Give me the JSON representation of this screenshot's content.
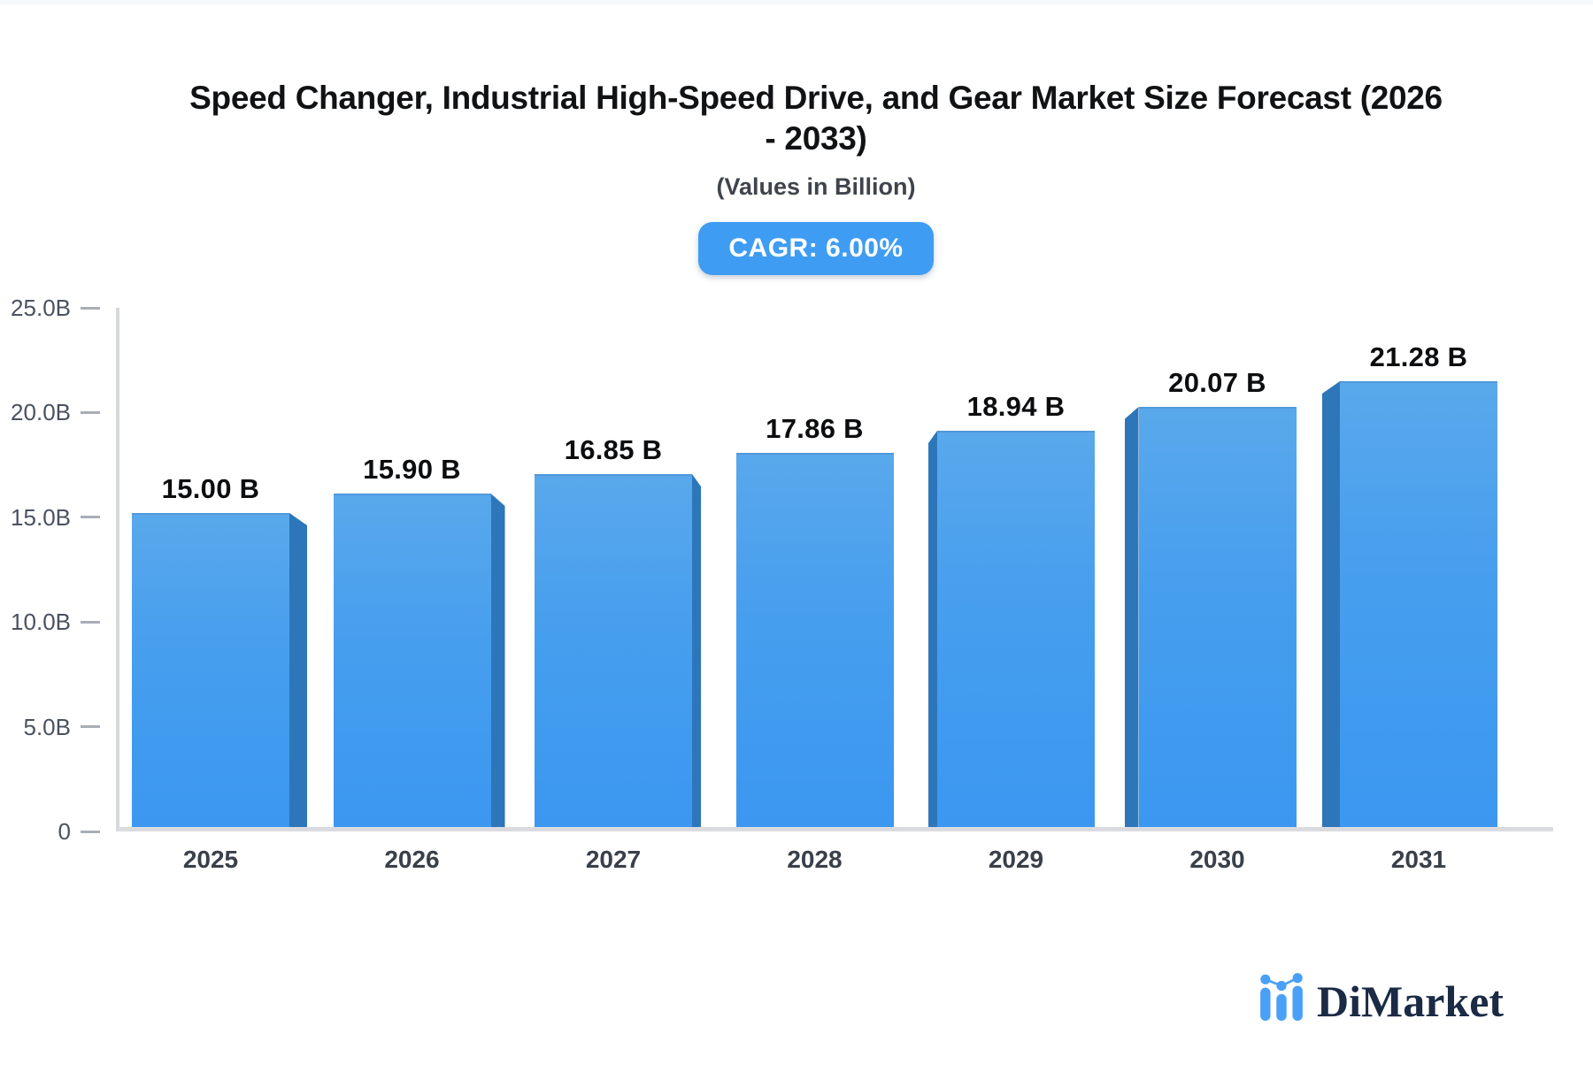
{
  "header": {
    "title_lines": [
      "Speed Changer, Industrial High-Speed Drive, and Gear Market Size Forecast (2026",
      "- 2033)"
    ],
    "subtitle": "(Values in Billion)",
    "cagr_badge": "CAGR: 6.00%"
  },
  "chart_data": {
    "type": "bar",
    "title": "Speed Changer, Industrial High-Speed Drive, and Gear Market Size Forecast (2026 - 2033)",
    "subtitle": "(Values in Billion)",
    "badge": "CAGR: 6.00%",
    "categories": [
      "2025",
      "2026",
      "2027",
      "2028",
      "2029",
      "2030",
      "2031"
    ],
    "values": [
      15.0,
      15.9,
      16.85,
      17.86,
      18.94,
      20.07,
      21.28
    ],
    "value_labels": [
      "15.00 B",
      "15.90 B",
      "16.85 B",
      "17.86 B",
      "18.94 B",
      "20.07 B",
      "21.28 B"
    ],
    "xlabel": "",
    "ylabel": "",
    "ylim": [
      0,
      25
    ],
    "yticks": [
      {
        "value": 0,
        "label": "0"
      },
      {
        "value": 5,
        "label": "5.0B"
      },
      {
        "value": 10,
        "label": "10.0B"
      },
      {
        "value": 15,
        "label": "15.0B"
      },
      {
        "value": 20,
        "label": "20.0B"
      },
      {
        "value": 25,
        "label": "25.0B"
      }
    ],
    "grid": false,
    "legend": false,
    "bar_style": "3d-perspective"
  },
  "colors": {
    "bar_face_top": "#59a8ec",
    "bar_face_bottom": "#3b97f0",
    "bar_side_shade": "#2d76ba",
    "badge_background": "#3f9cf3",
    "axis_line": "#d6d8dd",
    "logo_blue": "#4aa0f6",
    "logo_navy": "#1b2a45"
  },
  "logo": {
    "text": "DiMarket"
  }
}
